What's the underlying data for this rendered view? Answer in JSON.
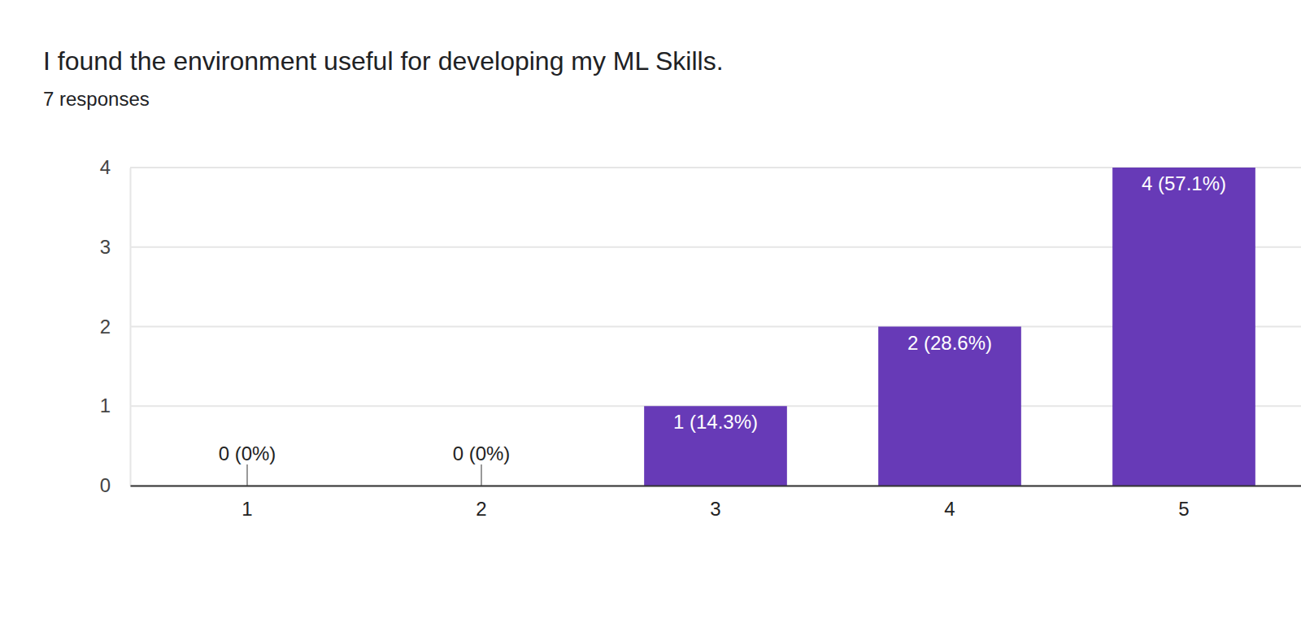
{
  "chart_data": {
    "type": "bar",
    "title": "I found the environment useful for developing my ML Skills.",
    "subtitle": "7 responses",
    "categories": [
      "1",
      "2",
      "3",
      "4",
      "5"
    ],
    "values": [
      0,
      0,
      1,
      2,
      4
    ],
    "value_labels": [
      "0 (0%)",
      "0 (0%)",
      "1 (14.3%)",
      "2 (28.6%)",
      "4 (57.1%)"
    ],
    "data_labels": true,
    "color": "#673ab7",
    "ylim": [
      0,
      4
    ],
    "yticks": [
      0,
      1,
      2,
      3,
      4
    ],
    "grid": true
  }
}
